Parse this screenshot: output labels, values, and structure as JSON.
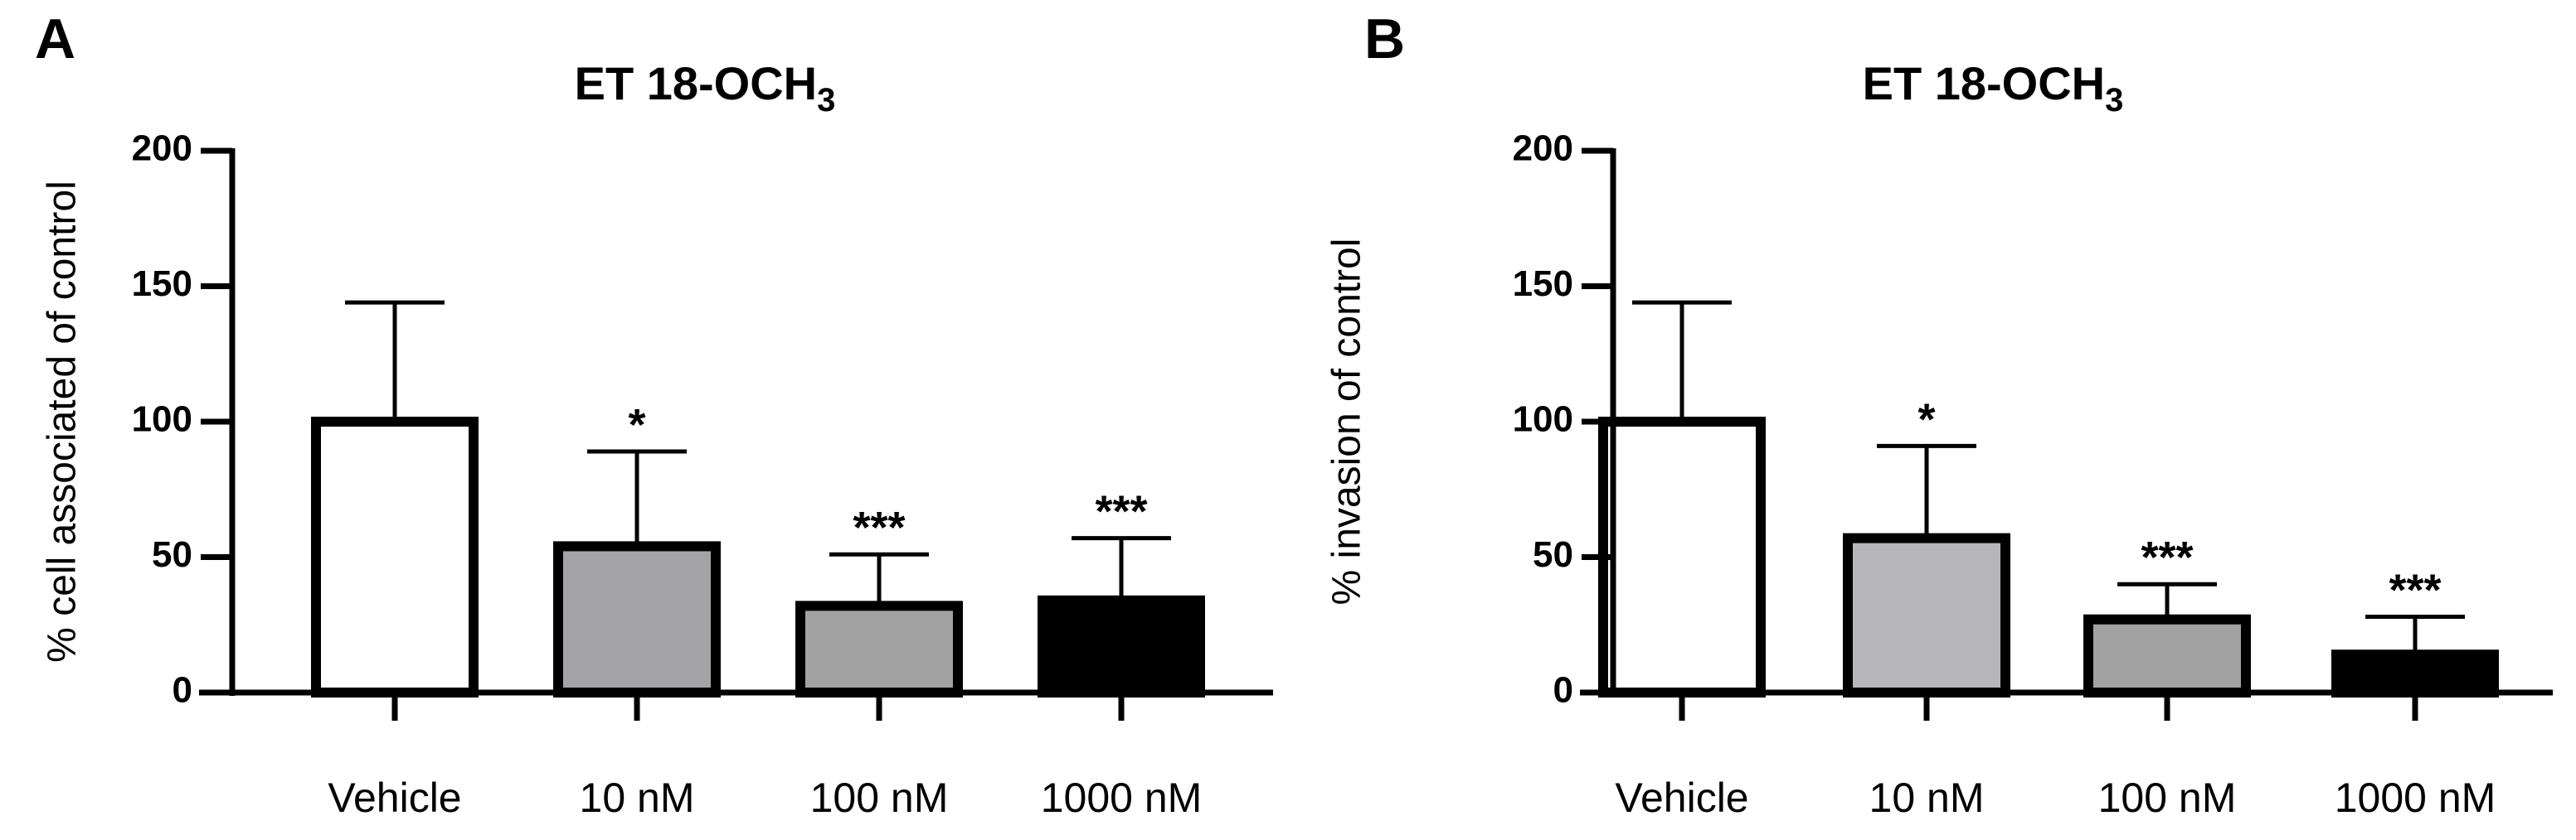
{
  "chart_data": [
    {
      "panel_label": "A",
      "type": "bar",
      "title": "ET 18-OCH",
      "title_subscript": "3",
      "ylabel": "% cell associated of control",
      "xlabel": "",
      "ylim": [
        0,
        200
      ],
      "yticks": [
        0,
        50,
        100,
        150,
        200
      ],
      "categories": [
        "Vehicle",
        "10 nM",
        "100 nM",
        "1000 nM"
      ],
      "values": [
        100,
        54,
        32,
        34
      ],
      "errors": [
        44,
        35,
        19,
        23
      ],
      "significance": [
        "",
        "*",
        "***",
        "***"
      ],
      "bar_colors": [
        "#ffffff",
        "#a4a4a6",
        "#a2a2a2",
        "#000000"
      ],
      "grid": false
    },
    {
      "panel_label": "B",
      "type": "bar",
      "title": "ET 18-OCH",
      "title_subscript": "3",
      "ylabel": "% invasion of control",
      "xlabel": "",
      "ylim": [
        0,
        200
      ],
      "yticks": [
        0,
        50,
        100,
        150,
        200
      ],
      "categories": [
        "Vehicle",
        "10 nM",
        "100 nM",
        "1000 nM"
      ],
      "values": [
        100,
        57,
        27,
        14
      ],
      "errors": [
        44,
        34,
        13,
        14
      ],
      "significance": [
        "",
        "*",
        "***",
        "***"
      ],
      "bar_colors": [
        "#ffffff",
        "#b7b7b9",
        "#a2a2a2",
        "#000000"
      ],
      "grid": false
    }
  ]
}
